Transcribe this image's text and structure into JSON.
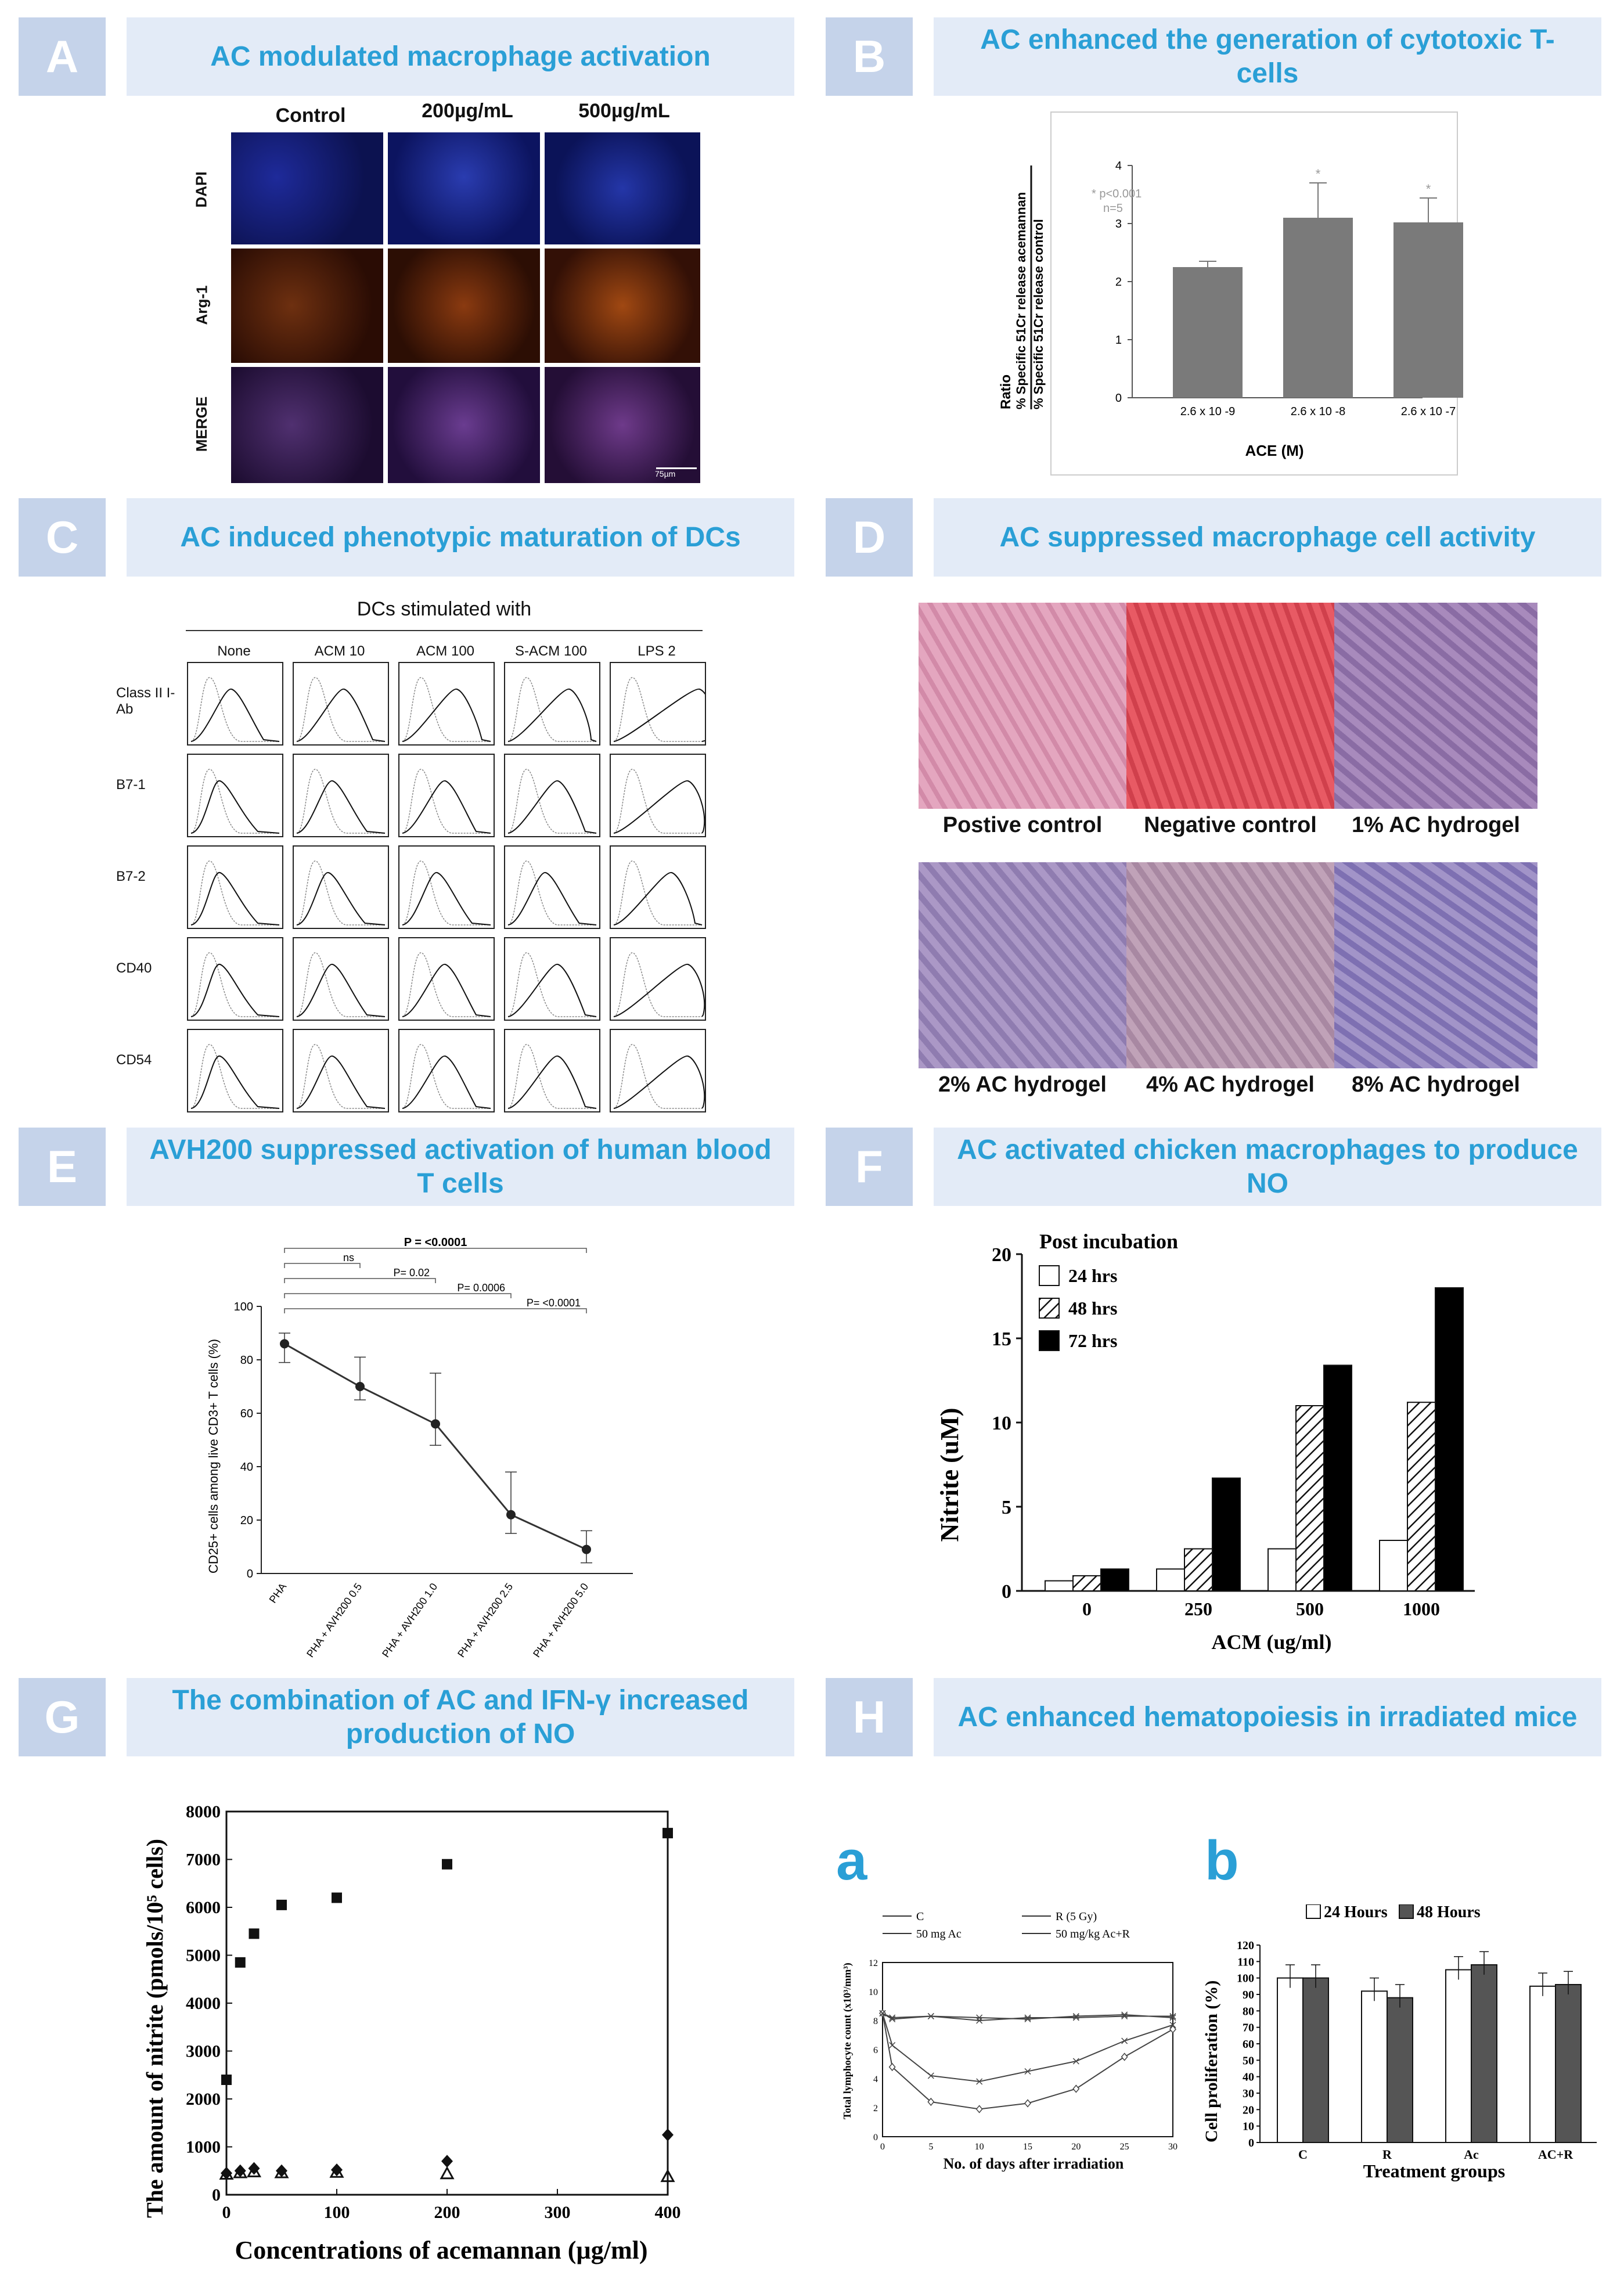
{
  "panels": {
    "A": {
      "letter": "A",
      "title": "AC modulated macrophage activation",
      "columns": [
        "Control",
        "200µg/mL",
        "500µg/mL"
      ],
      "rows": [
        "DAPI",
        "Arg-1",
        "MERGE"
      ],
      "scale_bar": "75µm",
      "colors": {
        "dapi": "#101a6e",
        "arg": "#5a2208",
        "merge": "#3a1c5a"
      }
    },
    "B": {
      "letter": "B",
      "title": "AC enhanced the generation of cytotoxic T-cells"
    },
    "C": {
      "letter": "C",
      "title": "AC induced phenotypic maturation of DCs",
      "header": "DCs stimulated with",
      "columns": [
        "None",
        "ACM 10",
        "ACM 100",
        "S-ACM 100",
        "LPS 2"
      ],
      "rows": [
        "Class II I-Ab",
        "B7-1",
        "B7-2",
        "CD40",
        "CD54"
      ]
    },
    "D": {
      "letter": "D",
      "title": "AC suppressed macrophage cell activity",
      "images": [
        "Postive control",
        "Negative control",
        "1% AC hydrogel",
        "2% AC hydrogel",
        "4% AC hydrogel",
        "8% AC hydrogel"
      ],
      "colors": [
        "#d89ab0",
        "#e0555f",
        "#9a7fb0",
        "#a08cbc",
        "#b59ab4",
        "#9a8ec0"
      ]
    },
    "E": {
      "letter": "E",
      "title": "AVH200 suppressed activation of human blood T cells"
    },
    "F": {
      "letter": "F",
      "title": "AC activated chicken macrophages to produce NO"
    },
    "G": {
      "letter": "G",
      "title": "The combination of AC and IFN-γ increased production of NO"
    },
    "H": {
      "letter": "H",
      "title": "AC enhanced  hematopoiesis in  irradiated mice",
      "sub_a": "a",
      "sub_b": "b"
    }
  },
  "chart_data": [
    {
      "id": "B",
      "type": "bar",
      "categories": [
        "2.6 x 10 -9",
        "2.6 x 10 -8",
        "2.6 x 10 -7"
      ],
      "values": [
        2.25,
        3.1,
        3.02
      ],
      "errors": [
        0.1,
        0.6,
        0.42
      ],
      "ylim": [
        0,
        4
      ],
      "yticks": [
        "0",
        "1",
        "2",
        "3",
        "4"
      ],
      "xlabel": "ACE (M)",
      "ylabel_top": "% Specific 51Cr release acemannan",
      "ylabel_bottom": "% Specific 51Cr release control",
      "ylabel_side": "Ratio",
      "annotation": [
        "* p<0.001",
        "n=5"
      ],
      "colors": {
        "bar": "#7a7a7a"
      }
    },
    {
      "id": "E",
      "type": "line",
      "categories": [
        "PHA",
        "PHA + AVH200 0.5",
        "PHA + AVH200 1.0",
        "PHA + AVH200 2.5",
        "PHA + AVH200 5.0"
      ],
      "values": [
        86,
        70,
        56,
        22,
        9
      ],
      "err_low": [
        7,
        5,
        8,
        7,
        5
      ],
      "err_high": [
        4,
        11,
        19,
        16,
        7
      ],
      "ylim": [
        0,
        100
      ],
      "yticks": [
        "0",
        "20",
        "40",
        "60",
        "80",
        "100"
      ],
      "ylabel": "CD25+ cells among live CD3+ T cells (%)",
      "brackets": [
        {
          "label": "P = <0.0001",
          "to": 4
        },
        {
          "label": "ns",
          "to": 1
        },
        {
          "label": "P= 0.02",
          "to": 2
        },
        {
          "label": "P= 0.0006",
          "to": 3
        },
        {
          "label": "P= <0.0001",
          "to": 4
        }
      ]
    },
    {
      "id": "F",
      "type": "bar",
      "categories": [
        "0",
        "250",
        "500",
        "1000"
      ],
      "series": [
        {
          "name": "24 hrs",
          "values": [
            0.6,
            1.3,
            2.5,
            3.0
          ]
        },
        {
          "name": "48 hrs",
          "values": [
            0.9,
            2.5,
            11.0,
            11.2
          ]
        },
        {
          "name": "72 hrs",
          "values": [
            1.3,
            6.7,
            13.4,
            18.0
          ]
        }
      ],
      "ylim": [
        0,
        20
      ],
      "yticks": [
        "0",
        "5",
        "10",
        "15",
        "20"
      ],
      "xlabel": "ACM (ug/ml)",
      "ylabel": "Nitrite (uM)",
      "legend_title": "Post incubation"
    },
    {
      "id": "G",
      "type": "scatter",
      "ylim": [
        0,
        8000
      ],
      "xlim": [
        0,
        400
      ],
      "yticks": [
        "0",
        "1000",
        "2000",
        "3000",
        "4000",
        "5000",
        "6000",
        "7000",
        "8000"
      ],
      "xticks": [
        "0",
        "100",
        "200",
        "300",
        "400"
      ],
      "xlabel": "Concentrations of acemannan (µg/ml)",
      "ylabel": "The amount of nitrite (pmols/10⁵ cells)",
      "series": [
        {
          "marker": "square",
          "x": [
            0,
            12.5,
            25,
            50,
            100,
            200,
            400
          ],
          "y": [
            2400,
            4850,
            5450,
            6050,
            6200,
            6900,
            7550
          ]
        },
        {
          "marker": "diamond",
          "x": [
            0,
            12.5,
            25,
            50,
            100,
            200,
            400
          ],
          "y": [
            450,
            500,
            550,
            500,
            520,
            700,
            1250
          ]
        },
        {
          "marker": "triangle",
          "x": [
            0,
            12.5,
            25,
            50,
            100,
            200,
            400
          ],
          "y": [
            430,
            460,
            480,
            460,
            470,
            440,
            380
          ]
        }
      ]
    },
    {
      "id": "Ha",
      "type": "line",
      "x": [
        0,
        1,
        5,
        10,
        15,
        20,
        25,
        30
      ],
      "series": [
        {
          "name": "C",
          "values": [
            8.5,
            8.2,
            8.3,
            8.0,
            8.2,
            8.2,
            8.3,
            8.3
          ]
        },
        {
          "name": "R (5 Gy)",
          "values": [
            8.5,
            4.8,
            2.4,
            1.9,
            2.3,
            3.3,
            5.5,
            7.4
          ]
        },
        {
          "name": "50 mg Ac",
          "values": [
            8.5,
            8.1,
            8.3,
            8.2,
            8.1,
            8.3,
            8.4,
            8.2
          ]
        },
        {
          "name": "50 mg/kg Ac+R",
          "values": [
            8.5,
            6.3,
            4.2,
            3.8,
            4.5,
            5.2,
            6.6,
            7.7
          ]
        }
      ],
      "ylim": [
        0,
        12
      ],
      "yticks": [
        "0",
        "2",
        "4",
        "6",
        "8",
        "10",
        "12"
      ],
      "xticks": [
        "0",
        "5",
        "10",
        "15",
        "20",
        "25",
        "30"
      ],
      "xlabel": "No. of days after irradiation",
      "ylabel": "Total lymphocyte count (x10³/mm³)"
    },
    {
      "id": "Hb",
      "type": "bar",
      "categories": [
        "C",
        "R",
        "Ac",
        "AC+R"
      ],
      "series": [
        {
          "name": "24 Hours",
          "values": [
            100,
            92,
            105,
            95
          ]
        },
        {
          "name": "48 Hours",
          "values": [
            100,
            88,
            108,
            96
          ]
        }
      ],
      "ylim": [
        0,
        120
      ],
      "yticks": [
        "0",
        "10",
        "20",
        "30",
        "40",
        "50",
        "60",
        "70",
        "80",
        "90",
        "100",
        "110",
        "120"
      ],
      "xlabel": "Treatment groups",
      "ylabel": "Cell  proliferation (%)"
    }
  ]
}
